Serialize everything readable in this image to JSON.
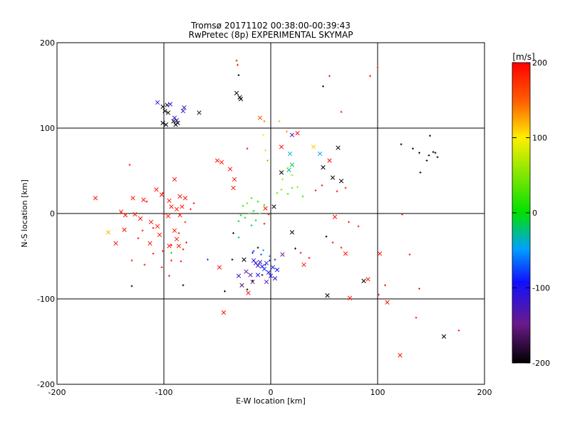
{
  "chart_data": {
    "type": "scatter",
    "title": "Tromsø 20171102 00:38:00-00:39:43",
    "subtitle": "RwPretec (8p) EXPERIMENTAL SKYMAP",
    "xlabel": "E-W location [km]",
    "ylabel": "N-S location [km]",
    "xlim": [
      -200,
      200
    ],
    "ylim": [
      -200,
      200
    ],
    "xticks": [
      -200,
      -100,
      0,
      100,
      200
    ],
    "yticks": [
      -200,
      -100,
      0,
      100,
      200
    ],
    "grid": true,
    "colorbar": {
      "label": "[m/s]",
      "min": -200,
      "max": 200,
      "ticks": [
        200,
        100,
        0,
        -100,
        -200
      ],
      "colormap": "black-purple-blue-cyan-green-yellow-red"
    },
    "series": [
      {
        "marker": "x",
        "points": [
          [
            -67,
            118,
            -180
          ],
          [
            -32,
            141,
            -190
          ],
          [
            -29,
            136,
            -200
          ],
          [
            -28,
            134,
            -195
          ],
          [
            -106,
            130,
            -120
          ],
          [
            -101,
            125,
            -200
          ],
          [
            -97,
            127,
            -190
          ],
          [
            -94,
            128,
            -110
          ],
          [
            -99,
            120,
            -200
          ],
          [
            -96,
            118,
            -195
          ],
          [
            -81,
            124,
            -130
          ],
          [
            -82,
            120,
            -120
          ],
          [
            -90,
            112,
            -110
          ],
          [
            -88,
            109,
            -130
          ],
          [
            -91,
            108,
            -200
          ],
          [
            -87,
            106,
            -200
          ],
          [
            -101,
            106,
            -200
          ],
          [
            -98,
            104,
            -200
          ],
          [
            -89,
            104,
            -200
          ],
          [
            -10,
            112,
            160
          ],
          [
            20,
            92,
            -130
          ],
          [
            25,
            94,
            190
          ],
          [
            40,
            78,
            110
          ],
          [
            18,
            70,
            -40
          ],
          [
            46,
            70,
            -50
          ],
          [
            55,
            62,
            200
          ],
          [
            20,
            57,
            -20
          ],
          [
            17,
            51,
            -30
          ],
          [
            10,
            48,
            -200
          ],
          [
            49,
            54,
            -200
          ],
          [
            63,
            77,
            -200
          ],
          [
            66,
            38,
            -200
          ],
          [
            58,
            42,
            -200
          ],
          [
            -38,
            52,
            190
          ],
          [
            -34,
            40,
            190
          ],
          [
            -35,
            30,
            190
          ],
          [
            -50,
            62,
            190
          ],
          [
            -46,
            60,
            190
          ],
          [
            -107,
            28,
            190
          ],
          [
            -119,
            16,
            190
          ],
          [
            -129,
            18,
            190
          ],
          [
            -164,
            18,
            190
          ],
          [
            -90,
            40,
            190
          ],
          [
            -102,
            22,
            190
          ],
          [
            -95,
            15,
            190
          ],
          [
            -85,
            20,
            190
          ],
          [
            -80,
            18,
            190
          ],
          [
            -93,
            8,
            190
          ],
          [
            -88,
            5,
            190
          ],
          [
            -83,
            8,
            190
          ],
          [
            -96,
            -3,
            190
          ],
          [
            -85,
            -2,
            190
          ],
          [
            -140,
            2,
            190
          ],
          [
            -136,
            -2,
            190
          ],
          [
            -127,
            -1,
            190
          ],
          [
            -122,
            -6,
            190
          ],
          [
            -112,
            -10,
            190
          ],
          [
            -106,
            -15,
            190
          ],
          [
            -104,
            -25,
            190
          ],
          [
            -137,
            -19,
            190
          ],
          [
            -145,
            -35,
            190
          ],
          [
            -113,
            -35,
            190
          ],
          [
            -90,
            -20,
            190
          ],
          [
            -88,
            -30,
            190
          ],
          [
            -95,
            -38,
            190
          ],
          [
            -86,
            -38,
            190
          ],
          [
            -152,
            -22,
            120
          ],
          [
            -48,
            -63,
            190
          ],
          [
            -21,
            -93,
            190
          ],
          [
            -44,
            -116,
            190
          ],
          [
            102,
            -47,
            190
          ],
          [
            109,
            -104,
            190
          ],
          [
            121,
            -166,
            190
          ],
          [
            74,
            -99,
            190
          ],
          [
            91,
            -77,
            190
          ],
          [
            87,
            -79,
            -200
          ],
          [
            53,
            -96,
            -200
          ],
          [
            162,
            -144,
            -200
          ],
          [
            31,
            -60,
            190
          ],
          [
            20,
            -22,
            -200
          ],
          [
            11,
            -48,
            -150
          ],
          [
            -25,
            -54,
            -200
          ],
          [
            -23,
            -68,
            -150
          ],
          [
            -16,
            -55,
            -110
          ],
          [
            -14,
            -58,
            -130
          ],
          [
            -12,
            -61,
            -120
          ],
          [
            -10,
            -57,
            -110
          ],
          [
            -8,
            -62,
            -100
          ],
          [
            -6,
            -65,
            -90
          ],
          [
            -4,
            -58,
            -80
          ],
          [
            -2,
            -69,
            -100
          ],
          [
            0,
            -73,
            -110
          ],
          [
            2,
            -63,
            -90
          ],
          [
            4,
            -76,
            -120
          ],
          [
            6,
            -66,
            -100
          ],
          [
            -19,
            -72,
            -130
          ],
          [
            -17,
            -80,
            -150
          ],
          [
            -27,
            -84,
            -160
          ],
          [
            -30,
            -73,
            -120
          ],
          [
            -12,
            -72,
            -100
          ],
          [
            -4,
            -80,
            -130
          ],
          [
            70,
            -47,
            190
          ],
          [
            60,
            -4,
            190
          ],
          [
            10,
            78,
            190
          ],
          [
            3,
            8,
            -200
          ],
          [
            -5,
            6,
            190
          ]
        ]
      },
      {
        "marker": "+",
        "points": [
          [
            -32,
            179,
            190
          ],
          [
            -30,
            162,
            -200
          ],
          [
            49,
            149,
            -200
          ],
          [
            55,
            161,
            190
          ],
          [
            93,
            161,
            190
          ],
          [
            100,
            171,
            190
          ],
          [
            66,
            119,
            190
          ],
          [
            -31,
            174,
            190
          ],
          [
            8,
            108,
            120
          ],
          [
            -6,
            108,
            140
          ],
          [
            -7,
            92,
            100
          ],
          [
            15,
            96,
            130
          ],
          [
            -22,
            76,
            190
          ],
          [
            -5,
            74,
            110
          ],
          [
            -3,
            62,
            40
          ],
          [
            16,
            54,
            100
          ],
          [
            20,
            45,
            60
          ],
          [
            11,
            40,
            60
          ],
          [
            25,
            31,
            60
          ],
          [
            20,
            30,
            40
          ],
          [
            10,
            28,
            50
          ],
          [
            6,
            24,
            40
          ],
          [
            16,
            23,
            30
          ],
          [
            30,
            20,
            20
          ],
          [
            -18,
            18,
            30
          ],
          [
            -12,
            14,
            20
          ],
          [
            -22,
            12,
            40
          ],
          [
            -6,
            10,
            10
          ],
          [
            -26,
            9,
            20
          ],
          [
            -16,
            3,
            0
          ],
          [
            -10,
            0,
            20
          ],
          [
            -20,
            0,
            10
          ],
          [
            -28,
            -2,
            0
          ],
          [
            -24,
            -5,
            10
          ],
          [
            -14,
            -8,
            0
          ],
          [
            -30,
            -9,
            -10
          ],
          [
            -18,
            -14,
            -20
          ],
          [
            -30,
            -28,
            -20
          ],
          [
            -6,
            -12,
            190
          ],
          [
            -2,
            -1,
            190
          ],
          [
            42,
            27,
            190
          ],
          [
            48,
            33,
            190
          ],
          [
            62,
            26,
            190
          ],
          [
            70,
            30,
            190
          ],
          [
            73,
            -10,
            190
          ],
          [
            82,
            -15,
            190
          ],
          [
            58,
            -34,
            190
          ],
          [
            66,
            -40,
            190
          ],
          [
            28,
            -46,
            190
          ],
          [
            36,
            -52,
            190
          ],
          [
            -101,
            24,
            190
          ],
          [
            -116,
            14,
            190
          ],
          [
            -100,
            -1,
            190
          ],
          [
            -110,
            -17,
            190
          ],
          [
            -120,
            -20,
            190
          ],
          [
            -124,
            -29,
            190
          ],
          [
            -101,
            -44,
            190
          ],
          [
            -93,
            -55,
            190
          ],
          [
            -102,
            -63,
            190
          ],
          [
            -95,
            -73,
            190
          ],
          [
            -82,
            -42,
            190
          ],
          [
            -79,
            -34,
            190
          ],
          [
            -130,
            -55,
            190
          ],
          [
            -110,
            -47,
            190
          ],
          [
            -118,
            -60,
            190
          ],
          [
            -80,
            -10,
            180
          ],
          [
            -75,
            5,
            190
          ],
          [
            -72,
            12,
            190
          ],
          [
            -132,
            57,
            190
          ],
          [
            -130,
            -85,
            -200
          ],
          [
            -82,
            -84,
            -200
          ],
          [
            -43,
            -91,
            -200
          ],
          [
            -22,
            -89,
            -200
          ],
          [
            -17,
            -79,
            -200
          ],
          [
            -35,
            -23,
            -200
          ],
          [
            -36,
            -54,
            -200
          ],
          [
            -12,
            -40,
            -200
          ],
          [
            23,
            -41,
            -200
          ],
          [
            52,
            -27,
            -200
          ],
          [
            -5,
            -60,
            -150
          ],
          [
            -1,
            -55,
            -170
          ],
          [
            4,
            -54,
            -150
          ],
          [
            -8,
            -72,
            -180
          ],
          [
            -17,
            -46,
            -100
          ],
          [
            -16,
            -44,
            -80
          ],
          [
            -7,
            -43,
            -40
          ],
          [
            -1,
            -50,
            -60
          ],
          [
            -9,
            -48,
            -70
          ],
          [
            -59,
            -54,
            -80
          ],
          [
            -93,
            -46,
            -10
          ],
          [
            -93,
            -37,
            190
          ],
          [
            -84,
            -56,
            190
          ],
          [
            -86,
            -23,
            190
          ],
          [
            123,
            -1,
            190
          ],
          [
            130,
            -48,
            190
          ],
          [
            139,
            -88,
            190
          ],
          [
            136,
            -122,
            190
          ],
          [
            176,
            -137,
            190
          ],
          [
            101,
            -95,
            190
          ],
          [
            107,
            -84,
            190
          ],
          [
            152,
            72,
            -200
          ],
          [
            154,
            71,
            -200
          ],
          [
            148,
            68,
            -200
          ],
          [
            146,
            62,
            -200
          ],
          [
            140,
            48,
            -200
          ],
          [
            133,
            76,
            -200
          ],
          [
            122,
            81,
            -200
          ],
          [
            149,
            91,
            -200
          ],
          [
            139,
            71,
            -200
          ],
          [
            156,
            66,
            -200
          ]
        ]
      }
    ]
  }
}
